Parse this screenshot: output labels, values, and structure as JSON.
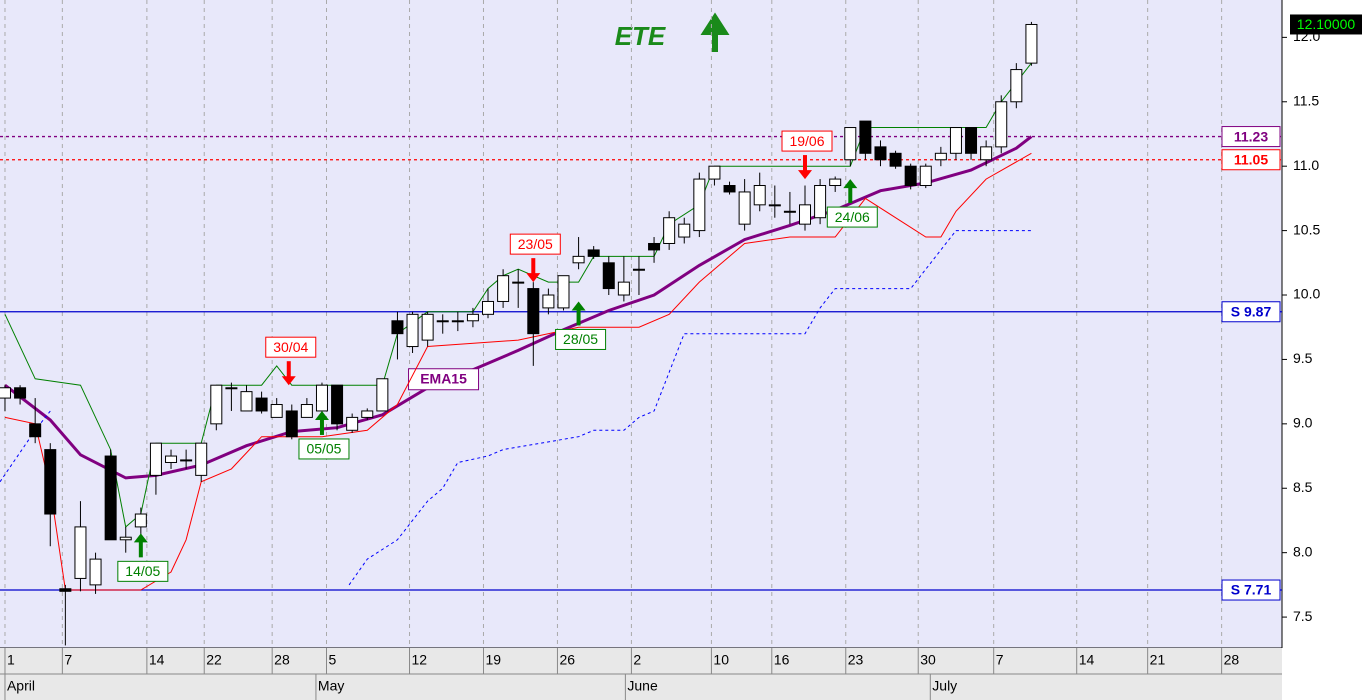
{
  "chart_data": {
    "type": "candlestick",
    "title": "ETE",
    "xlim": [
      -0.33,
      84.6
    ],
    "ylim": [
      7.26,
      12.29
    ],
    "xticks": [
      {
        "value": 0,
        "label": "1"
      },
      {
        "value": 3.8,
        "label": "7"
      },
      {
        "value": 9.4,
        "label": "14"
      },
      {
        "value": 13.2,
        "label": "22"
      },
      {
        "value": 17.7,
        "label": "28"
      },
      {
        "value": 21.3,
        "label": "5"
      },
      {
        "value": 26.8,
        "label": "12"
      },
      {
        "value": 31.7,
        "label": "19"
      },
      {
        "value": 36.6,
        "label": "26"
      },
      {
        "value": 41.5,
        "label": "2"
      },
      {
        "value": 46.8,
        "label": "10"
      },
      {
        "value": 50.8,
        "label": "16"
      },
      {
        "value": 55.7,
        "label": "23"
      },
      {
        "value": 60.5,
        "label": "30"
      },
      {
        "value": 65.5,
        "label": "7"
      },
      {
        "value": 71,
        "label": "14"
      },
      {
        "value": 75.7,
        "label": "21"
      },
      {
        "value": 80.6,
        "label": "28"
      }
    ],
    "month_labels": [
      {
        "value": 0,
        "label": "April"
      },
      {
        "value": 20.6,
        "label": "May"
      },
      {
        "value": 41.1,
        "label": "June"
      },
      {
        "value": 61.3,
        "label": "July"
      }
    ],
    "yticks": [
      7.5,
      {
        "value": 8,
        "label": "8.0"
      },
      8.5,
      {
        "value": 9,
        "label": "9.0"
      },
      9.5,
      {
        "value": 10,
        "label": "10.0"
      },
      10.5,
      {
        "value": 11,
        "label": "11.0"
      },
      11.5,
      {
        "value": 12,
        "label": "12.0"
      }
    ],
    "candles": {
      "x": [
        0,
        1,
        2,
        3,
        4,
        5,
        6,
        7,
        8,
        9,
        10,
        11,
        12,
        13,
        14,
        15,
        16,
        17,
        18,
        19,
        20,
        21,
        22,
        23,
        24,
        25,
        26,
        27,
        28,
        29,
        30,
        31,
        32,
        33,
        34,
        35,
        36,
        37,
        38,
        39,
        40,
        41,
        42,
        43,
        44,
        45,
        46,
        47,
        48,
        49,
        50,
        51,
        52,
        53,
        54,
        55,
        56,
        57,
        58,
        59,
        60,
        61,
        62,
        63,
        64,
        65,
        66,
        67,
        68
      ],
      "open": [
        9.2,
        9.28,
        9.0,
        8.8,
        7.72,
        7.8,
        7.75,
        8.75,
        8.1,
        8.2,
        8.6,
        8.7,
        8.72,
        8.6,
        9.0,
        9.28,
        9.1,
        9.2,
        9.05,
        9.1,
        9.05,
        9.1,
        9.3,
        8.95,
        9.05,
        9.1,
        9.8,
        9.6,
        9.65,
        9.8,
        9.8,
        9.8,
        9.85,
        9.95,
        10.1,
        10.05,
        9.9,
        9.9,
        10.25,
        10.35,
        10.25,
        10.0,
        10.2,
        10.4,
        10.4,
        10.45,
        10.5,
        10.9,
        10.85,
        10.55,
        10.7,
        10.7,
        10.65,
        10.55,
        10.6,
        10.85,
        11.05,
        11.35,
        11.15,
        11.1,
        11.0,
        10.85,
        11.05,
        11.1,
        11.3,
        11.05,
        11.15,
        11.5,
        11.8
      ],
      "high": [
        9.3,
        9.3,
        9.2,
        8.85,
        7.75,
        8.4,
        8.0,
        8.8,
        8.2,
        8.35,
        8.85,
        8.8,
        8.8,
        8.85,
        9.3,
        9.32,
        9.3,
        9.25,
        9.2,
        9.15,
        9.2,
        9.32,
        9.3,
        9.08,
        9.12,
        9.35,
        9.87,
        9.87,
        9.87,
        9.85,
        9.87,
        9.9,
        10.05,
        10.2,
        10.2,
        10.1,
        10.05,
        10.15,
        10.45,
        10.38,
        10.3,
        10.3,
        10.3,
        10.45,
        10.65,
        10.6,
        10.95,
        11.0,
        10.88,
        10.9,
        10.95,
        10.85,
        10.8,
        10.85,
        10.9,
        10.92,
        11.3,
        11.35,
        11.2,
        11.12,
        11.02,
        11.02,
        11.15,
        11.3,
        11.3,
        11.2,
        11.55,
        11.8,
        12.12
      ],
      "low": [
        9.1,
        9.15,
        8.85,
        8.05,
        7.28,
        7.7,
        7.68,
        8.1,
        8.0,
        8.1,
        8.45,
        8.65,
        8.65,
        8.55,
        8.95,
        9.1,
        9.1,
        9.08,
        9.05,
        8.88,
        9.05,
        9.08,
        8.95,
        8.93,
        9.03,
        9.1,
        9.5,
        9.55,
        9.6,
        9.7,
        9.72,
        9.75,
        9.82,
        9.9,
        9.9,
        9.45,
        9.85,
        9.88,
        10.2,
        10.28,
        10.0,
        9.95,
        10.0,
        10.25,
        10.35,
        10.4,
        10.45,
        10.85,
        10.78,
        10.5,
        10.65,
        10.6,
        10.55,
        10.5,
        10.55,
        10.8,
        11.0,
        11.05,
        11.0,
        10.98,
        10.82,
        10.83,
        11.0,
        11.05,
        11.05,
        11.0,
        11.1,
        11.45,
        11.78
      ],
      "close": [
        9.28,
        9.2,
        8.9,
        8.3,
        7.7,
        8.2,
        7.95,
        8.1,
        8.12,
        8.3,
        8.85,
        8.75,
        8.72,
        8.85,
        9.3,
        9.28,
        9.25,
        9.1,
        9.15,
        8.9,
        9.15,
        9.3,
        9.0,
        9.05,
        9.1,
        9.35,
        9.7,
        9.85,
        9.85,
        9.8,
        9.8,
        9.85,
        9.95,
        10.15,
        10.1,
        9.7,
        10.0,
        10.15,
        10.3,
        10.3,
        10.05,
        10.1,
        10.2,
        10.35,
        10.6,
        10.55,
        10.9,
        11.0,
        10.8,
        10.8,
        10.85,
        10.7,
        10.65,
        10.7,
        10.85,
        10.9,
        11.3,
        11.1,
        11.05,
        11.0,
        10.85,
        11.0,
        11.1,
        11.3,
        11.1,
        11.15,
        11.5,
        11.75,
        12.1
      ]
    },
    "series": [
      {
        "name": "EMA15",
        "color": "#800080",
        "width": 3,
        "dash": false,
        "x": [
          0,
          3,
          5,
          8,
          10,
          13,
          16,
          19,
          22,
          25,
          28,
          31,
          34,
          37,
          40,
          43,
          46,
          49,
          52,
          55,
          58,
          61,
          64,
          67,
          68
        ],
        "values": [
          9.3,
          9.03,
          8.76,
          8.58,
          8.6,
          8.68,
          8.83,
          8.94,
          8.97,
          9.07,
          9.28,
          9.42,
          9.57,
          9.73,
          9.88,
          10.0,
          10.23,
          10.43,
          10.54,
          10.66,
          10.81,
          10.87,
          10.97,
          11.14,
          11.23
        ]
      },
      {
        "color": "#008000",
        "width": 1,
        "dash": false,
        "x": [
          0,
          2,
          5,
          7,
          8,
          9,
          10,
          13,
          14,
          17,
          18,
          19,
          21,
          25,
          26,
          28,
          31,
          32,
          33,
          34,
          36,
          38,
          39,
          43,
          44,
          46,
          47,
          54,
          56,
          57,
          63,
          65,
          66,
          68
        ],
        "values": [
          9.85,
          9.35,
          9.3,
          8.8,
          8.2,
          8.3,
          8.85,
          8.85,
          9.3,
          9.3,
          9.45,
          9.3,
          9.3,
          9.3,
          9.7,
          9.87,
          9.87,
          10.05,
          10.15,
          10.2,
          10.1,
          10.1,
          10.3,
          10.3,
          10.55,
          10.7,
          11.0,
          11.0,
          11.0,
          11.3,
          11.3,
          11.3,
          11.5,
          11.8
        ]
      },
      {
        "color": "#ff0000",
        "width": 1,
        "dash": false,
        "x": [
          0,
          2,
          3,
          4,
          9,
          11,
          12,
          13,
          15,
          17,
          21,
          24,
          26,
          28,
          34,
          38,
          42,
          44,
          46,
          49,
          52,
          55,
          57,
          61,
          62,
          63,
          65,
          68
        ],
        "values": [
          9.05,
          9.0,
          8.5,
          7.71,
          7.71,
          7.85,
          8.1,
          8.55,
          8.65,
          8.9,
          8.9,
          8.95,
          9.15,
          9.6,
          9.65,
          9.75,
          9.75,
          9.85,
          10.1,
          10.4,
          10.45,
          10.45,
          10.75,
          10.45,
          10.45,
          10.65,
          10.9,
          11.1
        ]
      },
      {
        "color": "#0000ff",
        "width": 1,
        "dash": true,
        "x": [
          -0.33,
          2,
          3,
          3.5,
          22.8,
          24,
          26,
          28,
          29,
          30,
          32,
          33,
          38,
          39,
          41,
          42,
          43,
          45,
          53,
          54,
          55,
          60,
          61,
          62,
          63,
          68
        ],
        "values": [
          8.55,
          8.95,
          9.1,
          null,
          7.75,
          7.95,
          8.1,
          8.4,
          8.5,
          8.7,
          8.75,
          8.8,
          8.9,
          8.95,
          8.95,
          9.05,
          9.1,
          9.7,
          9.7,
          9.9,
          10.05,
          10.05,
          10.2,
          10.35,
          10.5,
          10.5
        ]
      }
    ],
    "levels": [
      {
        "label": "S 9.87",
        "value": 9.87,
        "color": "#0000cc",
        "dash": false
      },
      {
        "label": "S 7.71",
        "value": 7.71,
        "color": "#0000cc",
        "dash": false
      },
      {
        "label": "11.23",
        "value": 11.23,
        "color": "#800080",
        "dash": true
      },
      {
        "label": "11.05",
        "value": 11.05,
        "color": "#ff0000",
        "dash": true
      }
    ],
    "signals": [
      {
        "label": "30/04",
        "x": 18.8,
        "price": 9.3,
        "direction": "down",
        "color": "#ff0000"
      },
      {
        "label": "05/05",
        "x": 21,
        "price": 9.1,
        "direction": "up",
        "color": "#008000"
      },
      {
        "label": "14/05",
        "x": 9,
        "price": 8.15,
        "direction": "up",
        "color": "#008000"
      },
      {
        "label": "23/05",
        "x": 35,
        "price": 10.1,
        "direction": "down",
        "color": "#ff0000"
      },
      {
        "label": "28/05",
        "x": 38,
        "price": 9.95,
        "direction": "up",
        "color": "#008000"
      },
      {
        "label": "19/06",
        "x": 53,
        "price": 10.9,
        "direction": "down",
        "color": "#ff0000"
      },
      {
        "label": "24/06",
        "x": 56,
        "price": 10.9,
        "direction": "up",
        "color": "#008000"
      }
    ],
    "last_price": {
      "value": 12.1,
      "label": "12.10000"
    }
  }
}
